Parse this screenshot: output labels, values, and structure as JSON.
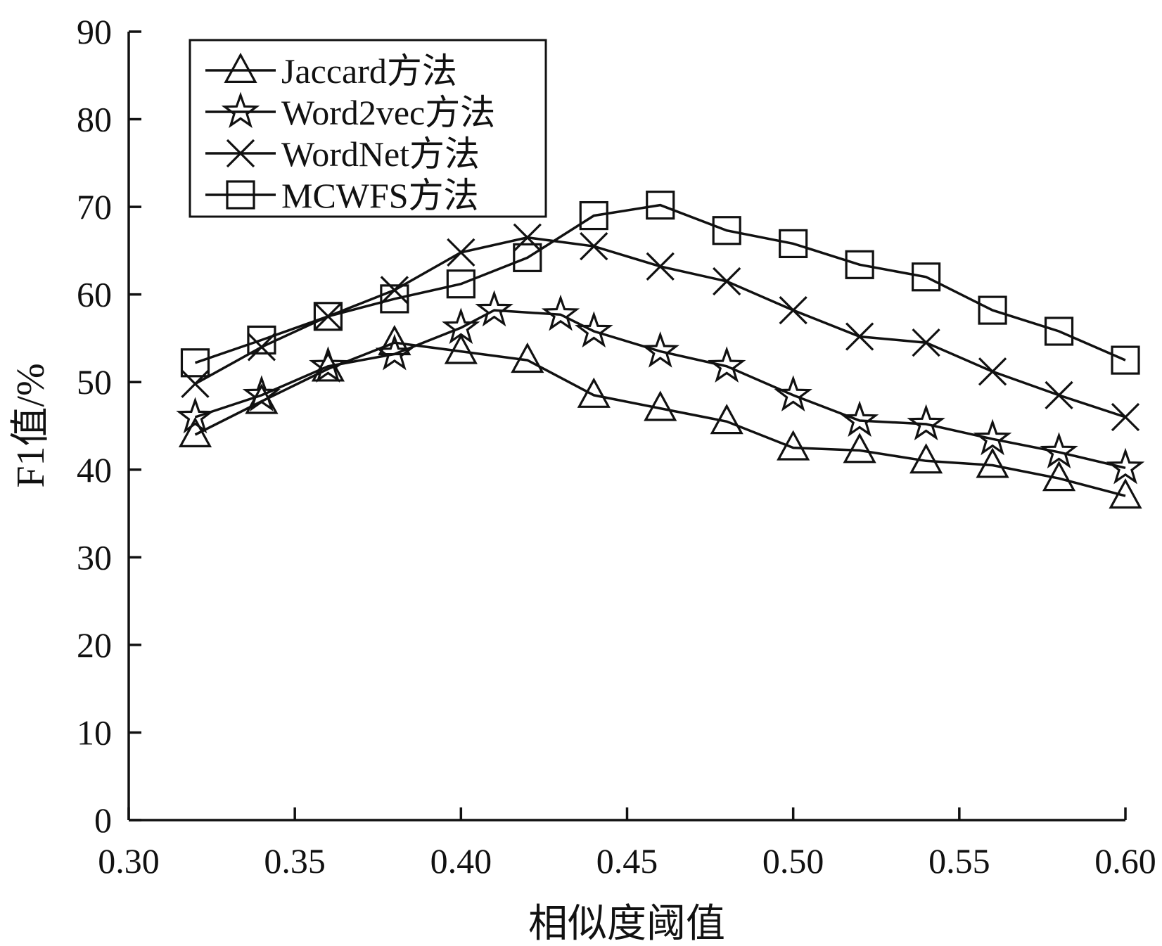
{
  "chart_data": {
    "type": "line",
    "xlabel": "相似度阈值",
    "ylabel": "F1值/%",
    "xlim": [
      0.3,
      0.6
    ],
    "ylim": [
      0,
      90
    ],
    "xticks": [
      "0.30",
      "0.35",
      "0.40",
      "0.45",
      "0.50",
      "0.55",
      "0.60"
    ],
    "yticks": [
      "0",
      "10",
      "20",
      "30",
      "40",
      "50",
      "60",
      "70",
      "80",
      "90"
    ],
    "legend_position": "top-left",
    "grid": false,
    "series": [
      {
        "name": "Jaccard方法",
        "marker": "triangle",
        "points": [
          [
            0.32,
            44.0
          ],
          [
            0.34,
            47.8
          ],
          [
            0.36,
            51.5
          ],
          [
            0.38,
            54.5
          ],
          [
            0.4,
            53.5
          ],
          [
            0.42,
            52.5
          ],
          [
            0.44,
            48.5
          ],
          [
            0.46,
            47.0
          ],
          [
            0.48,
            45.5
          ],
          [
            0.5,
            42.5
          ],
          [
            0.52,
            42.2
          ],
          [
            0.54,
            41.0
          ],
          [
            0.56,
            40.5
          ],
          [
            0.58,
            39.0
          ],
          [
            0.6,
            37.0
          ]
        ]
      },
      {
        "name": "Word2vec方法",
        "marker": "star",
        "points": [
          [
            0.32,
            46.0
          ],
          [
            0.34,
            48.5
          ],
          [
            0.36,
            51.8
          ],
          [
            0.38,
            53.2
          ],
          [
            0.4,
            56.2
          ],
          [
            0.41,
            58.2
          ],
          [
            0.43,
            57.7
          ],
          [
            0.44,
            55.8
          ],
          [
            0.46,
            53.5
          ],
          [
            0.48,
            51.8
          ],
          [
            0.5,
            48.5
          ],
          [
            0.52,
            45.6
          ],
          [
            0.54,
            45.2
          ],
          [
            0.56,
            43.5
          ],
          [
            0.58,
            42.0
          ],
          [
            0.6,
            40.2
          ]
        ]
      },
      {
        "name": "WordNet方法",
        "marker": "x",
        "points": [
          [
            0.32,
            49.8
          ],
          [
            0.34,
            54.0
          ],
          [
            0.36,
            57.5
          ],
          [
            0.38,
            60.5
          ],
          [
            0.4,
            64.8
          ],
          [
            0.42,
            66.5
          ],
          [
            0.44,
            65.5
          ],
          [
            0.46,
            63.2
          ],
          [
            0.48,
            61.5
          ],
          [
            0.5,
            58.2
          ],
          [
            0.52,
            55.2
          ],
          [
            0.54,
            54.5
          ],
          [
            0.56,
            51.2
          ],
          [
            0.58,
            48.5
          ],
          [
            0.6,
            46.0
          ]
        ]
      },
      {
        "name": "MCWFS方法",
        "marker": "square",
        "points": [
          [
            0.32,
            52.2
          ],
          [
            0.34,
            54.8
          ],
          [
            0.36,
            57.5
          ],
          [
            0.38,
            59.5
          ],
          [
            0.4,
            61.2
          ],
          [
            0.42,
            64.2
          ],
          [
            0.44,
            69.0
          ],
          [
            0.46,
            70.2
          ],
          [
            0.48,
            67.3
          ],
          [
            0.5,
            65.8
          ],
          [
            0.52,
            63.4
          ],
          [
            0.54,
            62.0
          ],
          [
            0.56,
            58.2
          ],
          [
            0.58,
            55.8
          ],
          [
            0.6,
            52.5
          ]
        ]
      }
    ]
  }
}
